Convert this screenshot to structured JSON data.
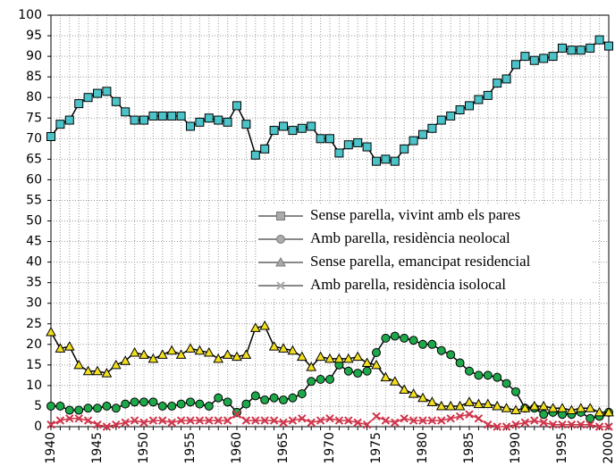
{
  "chart_data": {
    "type": "line",
    "x": [
      1940,
      1941,
      1942,
      1943,
      1944,
      1945,
      1946,
      1947,
      1948,
      1949,
      1950,
      1951,
      1952,
      1953,
      1954,
      1955,
      1956,
      1957,
      1958,
      1959,
      1960,
      1961,
      1962,
      1963,
      1964,
      1965,
      1966,
      1967,
      1968,
      1969,
      1970,
      1971,
      1972,
      1973,
      1974,
      1975,
      1976,
      1977,
      1978,
      1979,
      1980,
      1981,
      1982,
      1983,
      1984,
      1985,
      1986,
      1987,
      1988,
      1989,
      1990,
      1991,
      1992,
      1993,
      1994,
      1995,
      1996,
      1997,
      1998,
      1999,
      2000
    ],
    "series": [
      {
        "name": "Sense parella, vivint amb els pares",
        "color": "#4cc3c8",
        "marker": "square",
        "values": [
          70.5,
          73.5,
          74.5,
          78.5,
          80,
          81,
          81.5,
          79,
          76.5,
          74.5,
          74.5,
          75.5,
          75.5,
          75.5,
          75.5,
          73,
          74,
          75,
          74.5,
          74,
          78,
          73.5,
          66,
          67.5,
          72,
          73,
          72,
          72.5,
          73,
          70,
          70,
          66.5,
          68.5,
          69,
          68,
          64.5,
          65,
          64.5,
          67.5,
          69.5,
          71,
          72.5,
          74.5,
          75.5,
          77,
          78,
          79.5,
          80.5,
          83.5,
          84.5,
          88,
          90,
          89,
          89.5,
          90,
          92,
          91.5,
          91.5,
          92,
          94,
          92.5
        ]
      },
      {
        "name": "Amb parella, residència neolocal",
        "color": "#1ea84a",
        "marker": "circle",
        "values": [
          5,
          5,
          4,
          4,
          4.5,
          4.5,
          5,
          4.5,
          5.5,
          6,
          6,
          6,
          5,
          5,
          5.5,
          6,
          5.5,
          5,
          7,
          6,
          3.5,
          5.5,
          7.5,
          6.5,
          7,
          6.5,
          7,
          8,
          11,
          11.5,
          11.5,
          15,
          13.5,
          13,
          13.5,
          18,
          21.5,
          22,
          21.5,
          21,
          20,
          20,
          18.5,
          17.5,
          15.5,
          13.5,
          12.5,
          12.5,
          12,
          10.5,
          8.5,
          4.5,
          4.5,
          3,
          3.5,
          3,
          3,
          3.5,
          2,
          2.5,
          3.5
        ]
      },
      {
        "name": "Sense parella, emancipat residencial",
        "color": "#f2e01e",
        "marker": "triangle",
        "values": [
          23,
          19,
          19.5,
          15,
          13.5,
          13.5,
          13,
          15,
          16,
          18,
          17.5,
          16.5,
          17.5,
          18.5,
          17.5,
          19,
          18.5,
          18,
          16.5,
          17.5,
          17,
          17.5,
          24,
          24.5,
          19.5,
          19,
          18.5,
          17,
          14.5,
          17,
          16.5,
          16.5,
          16.5,
          17,
          15.5,
          15,
          12,
          11,
          9,
          8,
          7,
          6,
          5,
          5,
          5,
          6,
          5.5,
          5.5,
          5,
          4.5,
          4,
          4.5,
          5,
          5,
          4.5,
          4.5,
          4,
          4.5,
          4.5,
          3.5,
          3.5
        ]
      },
      {
        "name": "Amb parella, residència isolocal",
        "color": "#d0344a",
        "marker": "x",
        "values": [
          0.5,
          1.5,
          2,
          2,
          1.5,
          0.5,
          0,
          0.5,
          1,
          1.5,
          1,
          1.5,
          1.5,
          1,
          1.5,
          1.5,
          1.5,
          1.5,
          1.5,
          1.5,
          3,
          1.5,
          1.5,
          1.5,
          1.5,
          1,
          1.5,
          2,
          1,
          1.5,
          2,
          1.5,
          1.5,
          1,
          0.5,
          2.5,
          1.5,
          1,
          2,
          1.5,
          1.5,
          1.5,
          1.5,
          2,
          2.5,
          3,
          2,
          0.5,
          0,
          0,
          0.5,
          1,
          1.5,
          1,
          0.5,
          0.5,
          0.5,
          0.5,
          0.5,
          0,
          0
        ]
      }
    ],
    "xlim": [
      1940,
      2000
    ],
    "xticks": [
      1940,
      1945,
      1950,
      1955,
      1960,
      1965,
      1970,
      1975,
      1980,
      1985,
      1990,
      1995,
      2000
    ],
    "ylim": [
      0,
      100
    ],
    "yticks": [
      0,
      5,
      10,
      15,
      20,
      25,
      30,
      35,
      40,
      45,
      50,
      55,
      60,
      65,
      70,
      75,
      80,
      85,
      90,
      95,
      100
    ],
    "grid": true,
    "legend": "right"
  }
}
